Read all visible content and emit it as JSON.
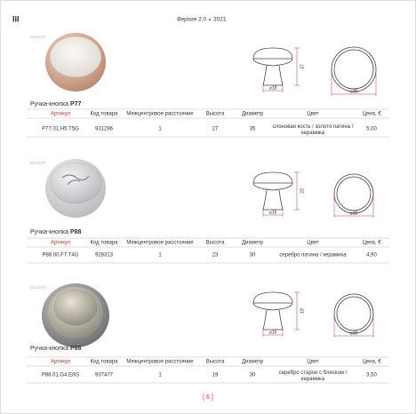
{
  "header": {
    "logo": "lil",
    "version": "Версия 2.0",
    "year": "2021",
    "brand": "GIUSTI"
  },
  "columns": [
    "Артикул",
    "Код товара",
    "Межцентровое расстояние",
    "Высота",
    "Диаметр",
    "Цвет",
    "Цена, €"
  ],
  "products": [
    {
      "name": "Ручка-кнопка",
      "model": "P77",
      "height_label": "27",
      "base_label": "⌀18",
      "diameter_label": "⌀35",
      "row": [
        "P77.01.H5.T5G",
        "931296",
        "1",
        "27",
        "35",
        "слоновая кость / золото патина / керамика",
        "5,00"
      ]
    },
    {
      "name": "Ручка-кнопка",
      "model": "P88",
      "height_label": "23",
      "base_label": "⌀16",
      "diameter_label": "⌀30",
      "row": [
        "P88.00.F7.T4G",
        "928313",
        "1",
        "23",
        "30",
        "серебро патина / керамика",
        "4,90"
      ]
    },
    {
      "name": "Ручка-кнопка",
      "model": "P88",
      "height_label": "19",
      "base_label": "⌀16",
      "diameter_label": "⌀30",
      "row": [
        "P88.01.G4.E8G",
        "937477",
        "1",
        "19",
        "30",
        "серебро старое с блеском / керамика",
        "3,50"
      ]
    }
  ],
  "footer": {
    "page": "[ 6 ]"
  }
}
